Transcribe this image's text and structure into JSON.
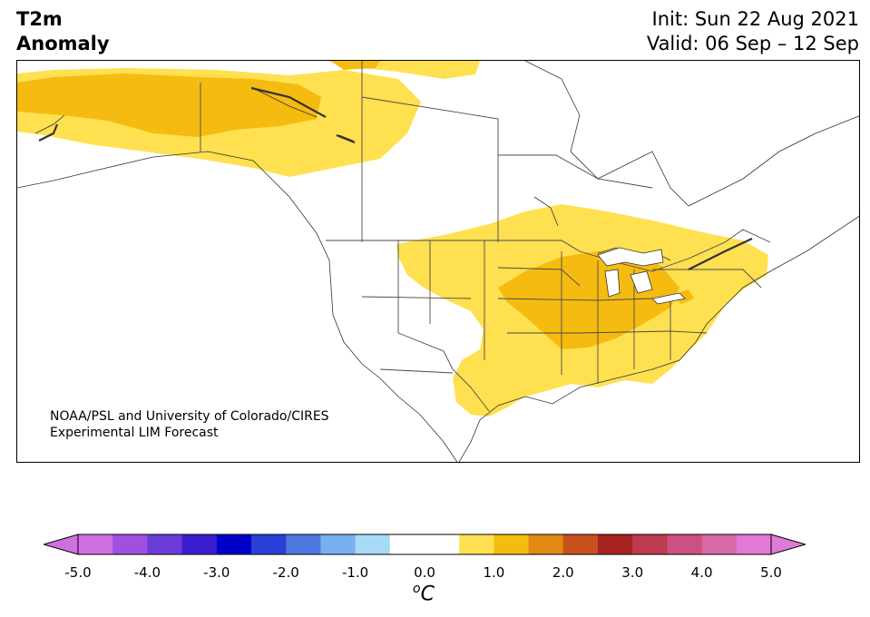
{
  "header": {
    "title_line1": "T2m",
    "title_line2": "Anomaly",
    "init": "Init: Sun 22 Aug 2021",
    "valid": "Valid: 06 Sep – 12 Sep"
  },
  "credit": {
    "line1": "NOAA/PSL and University of Colorado/CIRES",
    "line2": "Experimental LIM Forecast"
  },
  "colorbar": {
    "ticks": [
      "-5.0",
      "-4.0",
      "-3.0",
      "-2.0",
      "-1.0",
      "0.0",
      "1.0",
      "2.0",
      "3.0",
      "4.0",
      "5.0"
    ],
    "unit_base": "o",
    "unit_letter": "C",
    "colors": [
      "#d070e0",
      "#a050e0",
      "#6a3cd8",
      "#3c1ed0",
      "#0000c8",
      "#2a40d8",
      "#4c78e0",
      "#78b0ef",
      "#a8daf8",
      "#ffffff",
      "#ffffff",
      "#ffe050",
      "#f5bb10",
      "#e08a14",
      "#c8501c",
      "#a82222",
      "#be3a50",
      "#cc5080",
      "#d868a8",
      "#e07ad4"
    ],
    "under_color": "#d070e0",
    "over_color": "#e07ad4"
  },
  "map": {
    "region": "North America",
    "anomaly_colors": {
      "light": "#ffe050",
      "medium": "#f5bb10"
    }
  }
}
